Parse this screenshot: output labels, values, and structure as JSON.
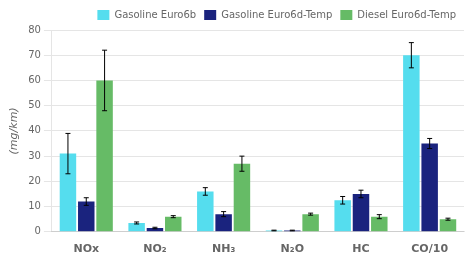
{
  "chart_data": {
    "type": "bar",
    "categories": [
      "NOx",
      "NO₂",
      "NH₃",
      "N₂O",
      "HC",
      "CO/10"
    ],
    "series": [
      {
        "name": "Gasoline Euro6b",
        "color": "#55DDEE",
        "values": [
          31,
          3.5,
          16,
          0.5,
          12.5,
          70
        ],
        "errors": [
          8,
          0.4,
          1.5,
          0.15,
          1.5,
          5
        ]
      },
      {
        "name": "Gasoline Euro6d-Temp",
        "color": "#1a237e",
        "values": [
          12,
          1.5,
          7,
          0.5,
          15,
          35
        ],
        "errors": [
          1.5,
          0.3,
          1.0,
          0.15,
          1.5,
          2
        ]
      },
      {
        "name": "Diesel Euro6d-Temp",
        "color": "#66BB66",
        "values": [
          60,
          6,
          27,
          7,
          6,
          5
        ],
        "errors": [
          12,
          0.4,
          3,
          0.4,
          0.8,
          0.4
        ]
      }
    ],
    "ylabel": "(mg/km)",
    "ylim": [
      0,
      80
    ],
    "yticks": [
      0,
      10,
      20,
      30,
      40,
      50,
      60,
      70,
      80
    ],
    "grid": "y",
    "legend": "upper right"
  }
}
